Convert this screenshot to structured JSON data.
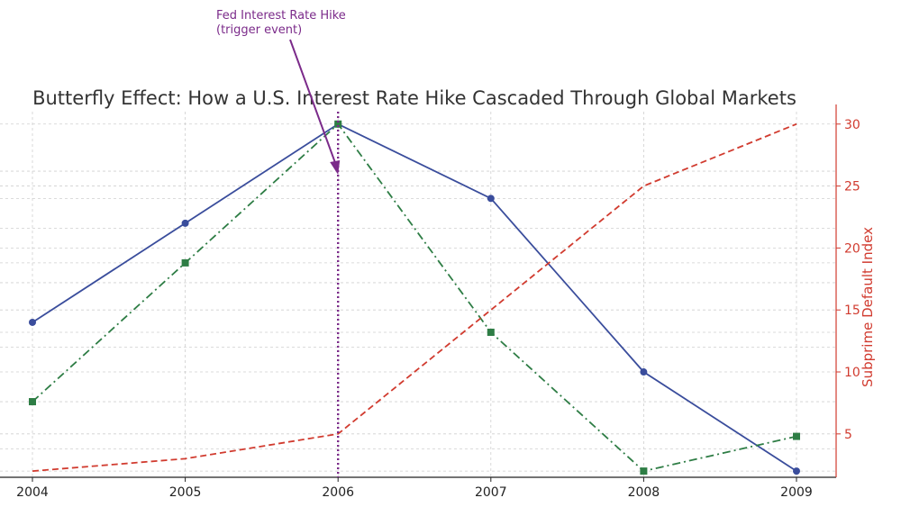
{
  "chart_data": {
    "type": "line",
    "title": "Butterfly Effect: How a U.S. Interest Rate Hike Cascaded Through Global Markets",
    "xlabel": "",
    "ylabel_right": "Subprime Default Index",
    "categories": [
      "2004",
      "2005",
      "2006",
      "2007",
      "2008",
      "2009"
    ],
    "ylim": [
      1.5,
      31.0
    ],
    "yticks": [
      5,
      10,
      15,
      20,
      25,
      30
    ],
    "grid": true,
    "series": [
      {
        "values": [
          14,
          22,
          30,
          24,
          10,
          2
        ],
        "color": "#3a4d9c",
        "style": "solid",
        "marker": "circle"
      },
      {
        "values": [
          7.6,
          18.8,
          30,
          13.2,
          2,
          4.8
        ],
        "color": "#2e7d45",
        "style": "dashdot",
        "marker": "square"
      },
      {
        "values": [
          2,
          3,
          5,
          15,
          25,
          30
        ],
        "color": "#d13b2f",
        "style": "dashed",
        "marker": "none"
      }
    ],
    "event": {
      "x": "2006",
      "color": "#7b2b8a",
      "label_lines": [
        "Fed Interest Rate Hike",
        "(trigger event)"
      ]
    }
  }
}
